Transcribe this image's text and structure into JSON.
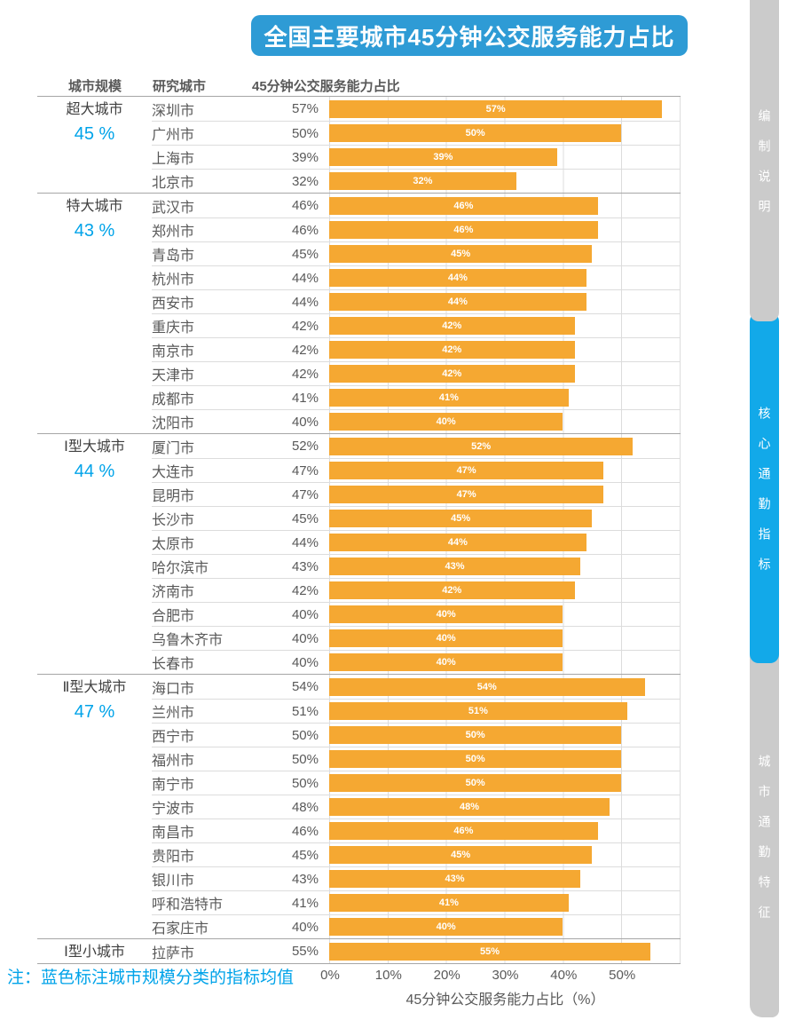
{
  "title": "全国主要城市45分钟公交服务能力占比",
  "columns": {
    "scale": "城市规模",
    "city": "研究城市",
    "metric": "45分钟公交服务能力占比"
  },
  "note": "注：蓝色标注城市规模分类的指标均值",
  "sidebar": {
    "tabs": [
      {
        "label": "编制说明",
        "active": false
      },
      {
        "label": "核心通勤指标",
        "active": true
      },
      {
        "label": "城市通勤特征",
        "active": false
      }
    ]
  },
  "colors": {
    "banner": "#2E9BD5",
    "tab_active": "#12A9E9",
    "tab_inactive": "#CBCBCB",
    "bar": "#F5A832",
    "highlight_text": "#00A3E9",
    "line_strong": "#A6A6A6",
    "line_light": "#DCDCDC"
  },
  "chart_data": {
    "type": "bar",
    "orientation": "horizontal",
    "title": "全国主要城市45分钟公交服务能力占比",
    "xlabel": "45分钟公交服务能力占比（%）",
    "xlim": [
      0,
      60
    ],
    "x_ticks": [
      "0%",
      "10%",
      "20%",
      "30%",
      "40%",
      "50%"
    ],
    "grid": true,
    "value_labels": "inside-center",
    "bar_color": "#F5A832",
    "groups": [
      {
        "scale": "超大城市",
        "average": 45,
        "average_label": "45 %",
        "cities": [
          {
            "name": "深圳市",
            "value": 57,
            "display": "57%"
          },
          {
            "name": "广州市",
            "value": 50,
            "display": "50%"
          },
          {
            "name": "上海市",
            "value": 39,
            "display": "39%"
          },
          {
            "name": "北京市",
            "value": 32,
            "display": "32%"
          }
        ]
      },
      {
        "scale": "特大城市",
        "average": 43,
        "average_label": "43 %",
        "cities": [
          {
            "name": "武汉市",
            "value": 46,
            "display": "46%"
          },
          {
            "name": "郑州市",
            "value": 46,
            "display": "46%"
          },
          {
            "name": "青岛市",
            "value": 45,
            "display": "45%"
          },
          {
            "name": "杭州市",
            "value": 44,
            "display": "44%"
          },
          {
            "name": "西安市",
            "value": 44,
            "display": "44%"
          },
          {
            "name": "重庆市",
            "value": 42,
            "display": "42%"
          },
          {
            "name": "南京市",
            "value": 42,
            "display": "42%"
          },
          {
            "name": "天津市",
            "value": 42,
            "display": "42%"
          },
          {
            "name": "成都市",
            "value": 41,
            "display": "41%"
          },
          {
            "name": "沈阳市",
            "value": 40,
            "display": "40%"
          }
        ]
      },
      {
        "scale": "Ⅰ型大城市",
        "average": 44,
        "average_label": "44 %",
        "cities": [
          {
            "name": "厦门市",
            "value": 52,
            "display": "52%"
          },
          {
            "name": "大连市",
            "value": 47,
            "display": "47%"
          },
          {
            "name": "昆明市",
            "value": 47,
            "display": "47%"
          },
          {
            "name": "长沙市",
            "value": 45,
            "display": "45%"
          },
          {
            "name": "太原市",
            "value": 44,
            "display": "44%"
          },
          {
            "name": "哈尔滨市",
            "value": 43,
            "display": "43%"
          },
          {
            "name": "济南市",
            "value": 42,
            "display": "42%"
          },
          {
            "name": "合肥市",
            "value": 40,
            "display": "40%"
          },
          {
            "name": "乌鲁木齐市",
            "value": 40,
            "display": "40%"
          },
          {
            "name": "长春市",
            "value": 40,
            "display": "40%"
          }
        ]
      },
      {
        "scale": "Ⅱ型大城市",
        "average": 47,
        "average_label": "47 %",
        "cities": [
          {
            "name": "海口市",
            "value": 54,
            "display": "54%"
          },
          {
            "name": "兰州市",
            "value": 51,
            "display": "51%"
          },
          {
            "name": "西宁市",
            "value": 50,
            "display": "50%"
          },
          {
            "name": "福州市",
            "value": 50,
            "display": "50%"
          },
          {
            "name": "南宁市",
            "value": 50,
            "display": "50%"
          },
          {
            "name": "宁波市",
            "value": 48,
            "display": "48%"
          },
          {
            "name": "南昌市",
            "value": 46,
            "display": "46%"
          },
          {
            "name": "贵阳市",
            "value": 45,
            "display": "45%"
          },
          {
            "name": "银川市",
            "value": 43,
            "display": "43%"
          },
          {
            "name": "呼和浩特市",
            "value": 41,
            "display": "41%"
          },
          {
            "name": "石家庄市",
            "value": 40,
            "display": "40%"
          }
        ]
      },
      {
        "scale": "Ⅰ型小城市",
        "average": null,
        "average_label": "",
        "cities": [
          {
            "name": "拉萨市",
            "value": 55,
            "display": "55%"
          }
        ]
      }
    ]
  }
}
